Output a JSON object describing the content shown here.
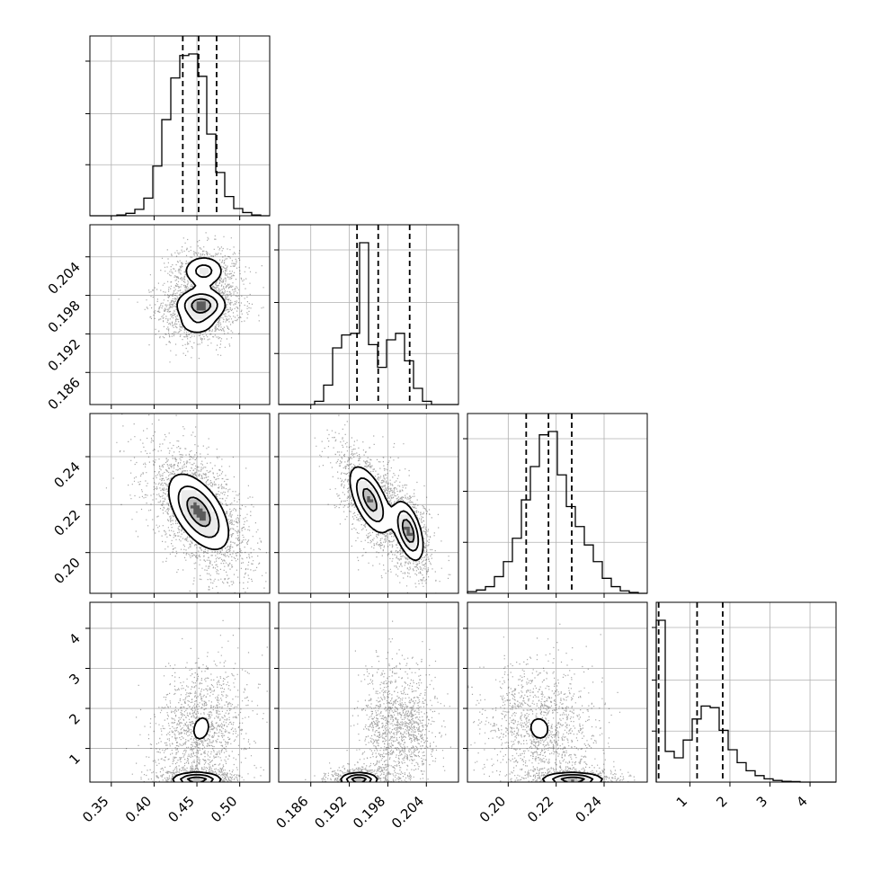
{
  "chart_data": {
    "type": "corner",
    "n_params": 4,
    "colors": {
      "line": "#000000",
      "grid": "#b0b0b0",
      "scatter": "#000000",
      "frame": "#000000"
    },
    "grid": true,
    "param_ranges": [
      [
        0.325,
        0.535
      ],
      [
        0.181,
        0.209
      ],
      [
        0.183,
        0.258
      ],
      [
        0.16,
        4.65
      ]
    ],
    "ticks": [
      {
        "values": [
          0.35,
          0.4,
          0.45,
          0.5
        ],
        "labels": [
          "0.35",
          "0.40",
          "0.45",
          "0.50"
        ]
      },
      {
        "values": [
          0.186,
          0.192,
          0.198,
          0.204
        ],
        "labels": [
          "0.186",
          "0.192",
          "0.198",
          "0.204"
        ]
      },
      {
        "values": [
          0.2,
          0.22,
          0.24
        ],
        "labels": [
          "0.20",
          "0.22",
          "0.24"
        ]
      },
      {
        "values": [
          1,
          2,
          3,
          4
        ],
        "labels": [
          "1",
          "2",
          "3",
          "4"
        ]
      }
    ],
    "histograms": [
      {
        "param": 0,
        "bin_edges": [
          0.325,
          0.3355,
          0.346,
          0.3565,
          0.367,
          0.3775,
          0.388,
          0.3985,
          0.409,
          0.4195,
          0.43,
          0.4405,
          0.451,
          0.4615,
          0.472,
          0.4825,
          0.493,
          0.5035,
          0.514,
          0.5245,
          0.535
        ],
        "counts": [
          0,
          0,
          0,
          0.5,
          1.5,
          4,
          11,
          31,
          60,
          86,
          100,
          101,
          87,
          51,
          27,
          12,
          4.5,
          2,
          0.5,
          0
        ],
        "quantiles": [
          0.4335,
          0.452,
          0.473
        ]
      },
      {
        "param": 1,
        "bin_edges": [
          0.181,
          0.1824,
          0.1838,
          0.1852,
          0.1866,
          0.188,
          0.1894,
          0.1908,
          0.1922,
          0.1936,
          0.195,
          0.1964,
          0.1978,
          0.1992,
          0.2006,
          0.202,
          0.2034,
          0.2048,
          0.2062,
          0.2076,
          0.209
        ],
        "counts": [
          0,
          0,
          0,
          0,
          2,
          12,
          35,
          43,
          44,
          100,
          37,
          23,
          40,
          44,
          27,
          10,
          2,
          0,
          0,
          0
        ],
        "quantiles": [
          0.1932,
          0.1965,
          0.2014
        ]
      },
      {
        "param": 2,
        "bin_edges": [
          0.183,
          0.18675,
          0.1905,
          0.19425,
          0.198,
          0.20175,
          0.2055,
          0.20925,
          0.213,
          0.21675,
          0.2205,
          0.22425,
          0.228,
          0.23175,
          0.2355,
          0.23925,
          0.243,
          0.24675,
          0.2505,
          0.25425,
          0.258
        ],
        "counts": [
          1,
          2,
          4,
          10,
          19,
          33,
          56,
          76,
          95,
          97,
          71,
          52,
          40,
          29,
          19,
          9,
          4,
          1.5,
          0.5,
          0
        ],
        "quantiles": [
          0.2075,
          0.2168,
          0.2265
        ]
      },
      {
        "param": 3,
        "bin_edges": [
          0.16,
          0.3845,
          0.609,
          0.8335,
          1.058,
          1.2825,
          1.507,
          1.7315,
          1.956,
          2.1805,
          2.405,
          2.6295,
          2.854,
          3.0785,
          3.303,
          3.5275,
          3.752,
          3.9765,
          4.201,
          4.4255,
          4.65
        ],
        "counts": [
          100,
          19,
          15,
          26,
          39,
          47,
          46,
          32,
          20,
          12,
          7,
          4,
          2,
          1,
          0.5,
          0.3,
          0,
          0,
          0,
          0
        ],
        "quantiles": [
          0.22,
          1.18,
          1.82
        ]
      }
    ],
    "contour_panels": [
      {
        "x_param": 0,
        "y_param": 1,
        "components": [
          {
            "mean": [
              0.455,
              0.1965
            ],
            "sd": [
              0.016,
              0.0014
            ],
            "rho": 0.0,
            "weight": 0.55
          },
          {
            "mean": [
              0.458,
              0.2018
            ],
            "sd": [
              0.014,
              0.0014
            ],
            "rho": 0.0,
            "weight": 0.3
          },
          {
            "mean": [
              0.45,
              0.1935
            ],
            "sd": [
              0.014,
              0.0012
            ],
            "rho": 0.0,
            "weight": 0.15
          }
        ]
      },
      {
        "x_param": 0,
        "y_param": 2,
        "components": [
          {
            "mean": [
              0.452,
              0.217
            ],
            "sd": [
              0.02,
              0.009
            ],
            "rho": -0.55,
            "weight": 1.0
          }
        ]
      },
      {
        "x_param": 1,
        "y_param": 2,
        "components": [
          {
            "mean": [
              0.1952,
              0.222
            ],
            "sd": [
              0.0018,
              0.008
            ],
            "rho": -0.6,
            "weight": 0.58
          },
          {
            "mean": [
              0.2012,
              0.209
            ],
            "sd": [
              0.0013,
              0.007
            ],
            "rho": -0.5,
            "weight": 0.42
          }
        ]
      },
      {
        "x_param": 0,
        "y_param": 3,
        "components": [
          {
            "mean": [
              0.455,
              1.5
            ],
            "sd": [
              0.018,
              0.55
            ],
            "rho": 0.2,
            "weight": 0.6
          },
          {
            "mean": [
              0.45,
              0.22
            ],
            "sd": [
              0.016,
              0.1
            ],
            "rho": 0.0,
            "weight": 0.4
          }
        ]
      },
      {
        "x_param": 1,
        "y_param": 3,
        "components": [
          {
            "mean": [
              0.1972,
              1.5
            ],
            "sd": [
              0.0012,
              0.55
            ],
            "rho": 0.0,
            "weight": 0.25
          },
          {
            "mean": [
              0.2014,
              1.55
            ],
            "sd": [
              0.0014,
              0.5
            ],
            "rho": 0.0,
            "weight": 0.35
          },
          {
            "mean": [
              0.1935,
              0.22
            ],
            "sd": [
              0.0016,
              0.1
            ],
            "rho": 0.0,
            "weight": 0.4
          }
        ]
      },
      {
        "x_param": 2,
        "y_param": 3,
        "components": [
          {
            "mean": [
              0.213,
              1.5
            ],
            "sd": [
              0.008,
              0.55
            ],
            "rho": -0.1,
            "weight": 0.6
          },
          {
            "mean": [
              0.227,
              0.22
            ],
            "sd": [
              0.007,
              0.1
            ],
            "rho": 0.0,
            "weight": 0.4
          }
        ]
      }
    ]
  }
}
